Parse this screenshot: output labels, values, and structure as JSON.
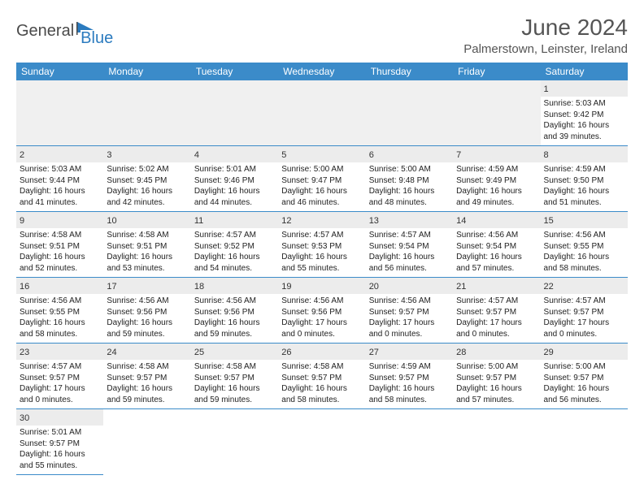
{
  "logo": {
    "part1": "General",
    "part2": "Blue"
  },
  "title": "June 2024",
  "location": "Palmerstown, Leinster, Ireland",
  "colors": {
    "header_bg": "#3b8bc9",
    "header_text": "#ffffff",
    "border": "#3b8bc9",
    "daynum_bg": "#ececec",
    "logo_blue": "#2b7bbf",
    "text_gray": "#555555"
  },
  "weekdays": [
    "Sunday",
    "Monday",
    "Tuesday",
    "Wednesday",
    "Thursday",
    "Friday",
    "Saturday"
  ],
  "weeks": [
    [
      {
        "empty": true
      },
      {
        "empty": true
      },
      {
        "empty": true
      },
      {
        "empty": true
      },
      {
        "empty": true
      },
      {
        "empty": true
      },
      {
        "day": "1",
        "sunrise": "Sunrise: 5:03 AM",
        "sunset": "Sunset: 9:42 PM",
        "daylight": "Daylight: 16 hours and 39 minutes."
      }
    ],
    [
      {
        "day": "2",
        "sunrise": "Sunrise: 5:03 AM",
        "sunset": "Sunset: 9:44 PM",
        "daylight": "Daylight: 16 hours and 41 minutes."
      },
      {
        "day": "3",
        "sunrise": "Sunrise: 5:02 AM",
        "sunset": "Sunset: 9:45 PM",
        "daylight": "Daylight: 16 hours and 42 minutes."
      },
      {
        "day": "4",
        "sunrise": "Sunrise: 5:01 AM",
        "sunset": "Sunset: 9:46 PM",
        "daylight": "Daylight: 16 hours and 44 minutes."
      },
      {
        "day": "5",
        "sunrise": "Sunrise: 5:00 AM",
        "sunset": "Sunset: 9:47 PM",
        "daylight": "Daylight: 16 hours and 46 minutes."
      },
      {
        "day": "6",
        "sunrise": "Sunrise: 5:00 AM",
        "sunset": "Sunset: 9:48 PM",
        "daylight": "Daylight: 16 hours and 48 minutes."
      },
      {
        "day": "7",
        "sunrise": "Sunrise: 4:59 AM",
        "sunset": "Sunset: 9:49 PM",
        "daylight": "Daylight: 16 hours and 49 minutes."
      },
      {
        "day": "8",
        "sunrise": "Sunrise: 4:59 AM",
        "sunset": "Sunset: 9:50 PM",
        "daylight": "Daylight: 16 hours and 51 minutes."
      }
    ],
    [
      {
        "day": "9",
        "sunrise": "Sunrise: 4:58 AM",
        "sunset": "Sunset: 9:51 PM",
        "daylight": "Daylight: 16 hours and 52 minutes."
      },
      {
        "day": "10",
        "sunrise": "Sunrise: 4:58 AM",
        "sunset": "Sunset: 9:51 PM",
        "daylight": "Daylight: 16 hours and 53 minutes."
      },
      {
        "day": "11",
        "sunrise": "Sunrise: 4:57 AM",
        "sunset": "Sunset: 9:52 PM",
        "daylight": "Daylight: 16 hours and 54 minutes."
      },
      {
        "day": "12",
        "sunrise": "Sunrise: 4:57 AM",
        "sunset": "Sunset: 9:53 PM",
        "daylight": "Daylight: 16 hours and 55 minutes."
      },
      {
        "day": "13",
        "sunrise": "Sunrise: 4:57 AM",
        "sunset": "Sunset: 9:54 PM",
        "daylight": "Daylight: 16 hours and 56 minutes."
      },
      {
        "day": "14",
        "sunrise": "Sunrise: 4:56 AM",
        "sunset": "Sunset: 9:54 PM",
        "daylight": "Daylight: 16 hours and 57 minutes."
      },
      {
        "day": "15",
        "sunrise": "Sunrise: 4:56 AM",
        "sunset": "Sunset: 9:55 PM",
        "daylight": "Daylight: 16 hours and 58 minutes."
      }
    ],
    [
      {
        "day": "16",
        "sunrise": "Sunrise: 4:56 AM",
        "sunset": "Sunset: 9:55 PM",
        "daylight": "Daylight: 16 hours and 58 minutes."
      },
      {
        "day": "17",
        "sunrise": "Sunrise: 4:56 AM",
        "sunset": "Sunset: 9:56 PM",
        "daylight": "Daylight: 16 hours and 59 minutes."
      },
      {
        "day": "18",
        "sunrise": "Sunrise: 4:56 AM",
        "sunset": "Sunset: 9:56 PM",
        "daylight": "Daylight: 16 hours and 59 minutes."
      },
      {
        "day": "19",
        "sunrise": "Sunrise: 4:56 AM",
        "sunset": "Sunset: 9:56 PM",
        "daylight": "Daylight: 17 hours and 0 minutes."
      },
      {
        "day": "20",
        "sunrise": "Sunrise: 4:56 AM",
        "sunset": "Sunset: 9:57 PM",
        "daylight": "Daylight: 17 hours and 0 minutes."
      },
      {
        "day": "21",
        "sunrise": "Sunrise: 4:57 AM",
        "sunset": "Sunset: 9:57 PM",
        "daylight": "Daylight: 17 hours and 0 minutes."
      },
      {
        "day": "22",
        "sunrise": "Sunrise: 4:57 AM",
        "sunset": "Sunset: 9:57 PM",
        "daylight": "Daylight: 17 hours and 0 minutes."
      }
    ],
    [
      {
        "day": "23",
        "sunrise": "Sunrise: 4:57 AM",
        "sunset": "Sunset: 9:57 PM",
        "daylight": "Daylight: 17 hours and 0 minutes."
      },
      {
        "day": "24",
        "sunrise": "Sunrise: 4:58 AM",
        "sunset": "Sunset: 9:57 PM",
        "daylight": "Daylight: 16 hours and 59 minutes."
      },
      {
        "day": "25",
        "sunrise": "Sunrise: 4:58 AM",
        "sunset": "Sunset: 9:57 PM",
        "daylight": "Daylight: 16 hours and 59 minutes."
      },
      {
        "day": "26",
        "sunrise": "Sunrise: 4:58 AM",
        "sunset": "Sunset: 9:57 PM",
        "daylight": "Daylight: 16 hours and 58 minutes."
      },
      {
        "day": "27",
        "sunrise": "Sunrise: 4:59 AM",
        "sunset": "Sunset: 9:57 PM",
        "daylight": "Daylight: 16 hours and 58 minutes."
      },
      {
        "day": "28",
        "sunrise": "Sunrise: 5:00 AM",
        "sunset": "Sunset: 9:57 PM",
        "daylight": "Daylight: 16 hours and 57 minutes."
      },
      {
        "day": "29",
        "sunrise": "Sunrise: 5:00 AM",
        "sunset": "Sunset: 9:57 PM",
        "daylight": "Daylight: 16 hours and 56 minutes."
      }
    ],
    [
      {
        "day": "30",
        "sunrise": "Sunrise: 5:01 AM",
        "sunset": "Sunset: 9:57 PM",
        "daylight": "Daylight: 16 hours and 55 minutes."
      },
      {
        "empty": true
      },
      {
        "empty": true
      },
      {
        "empty": true
      },
      {
        "empty": true
      },
      {
        "empty": true
      },
      {
        "empty": true
      }
    ]
  ]
}
